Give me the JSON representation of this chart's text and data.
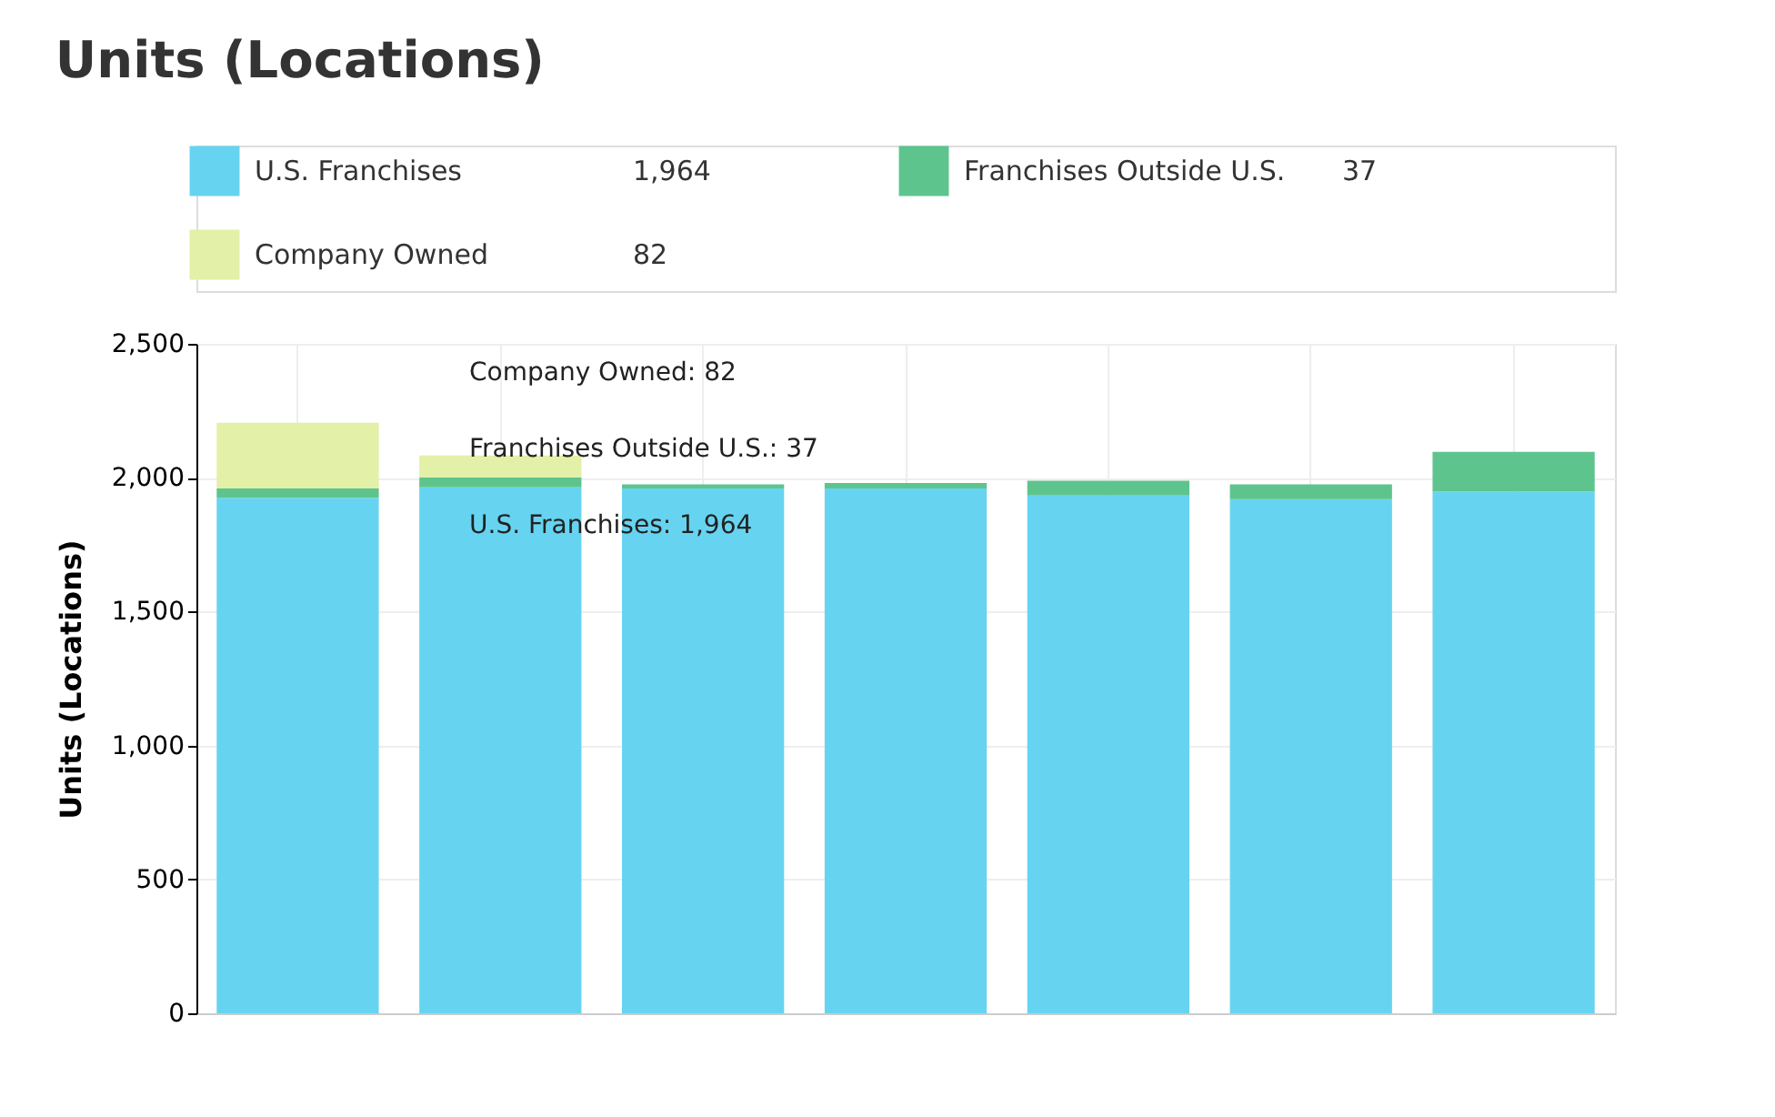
{
  "chart_data": {
    "type": "bar",
    "title": "Units (Locations)",
    "ylabel": "Units (Locations)",
    "categories": [
      null,
      null,
      null,
      null,
      null,
      null,
      null
    ],
    "stacked": true,
    "series": [
      {
        "name": "U.S. Franchises",
        "color": "#66d4f0",
        "values": [
          1925,
          1964,
          1960,
          1960,
          1934,
          1920,
          1948
        ]
      },
      {
        "name": "Franchises Outside U.S.",
        "color": "#5ec48e",
        "values": [
          35,
          37,
          15,
          20,
          55,
          55,
          149
        ]
      },
      {
        "name": "Company Owned",
        "color": "#e3f0a8",
        "values": [
          245,
          82,
          0,
          0,
          0,
          0,
          0
        ]
      }
    ],
    "annotations": [
      "U.S. Franchises: 1,964",
      "Franchises Outside U.S.: 37",
      "Company Owned: 82",
      "1,964",
      "37",
      "82"
    ],
    "ylim": [
      0,
      2500
    ],
    "yticks": [
      0,
      {
        "value": 500,
        "label": "500"
      },
      {
        "value": 1000,
        "label": "1,000"
      },
      {
        "value": 1500,
        "label": "1,500"
      },
      {
        "value": 2000,
        "label": "2,000"
      },
      {
        "value": 2500,
        "label": "2,500"
      }
    ],
    "grid": true,
    "legend": "top",
    "tick_labels": "y"
  }
}
